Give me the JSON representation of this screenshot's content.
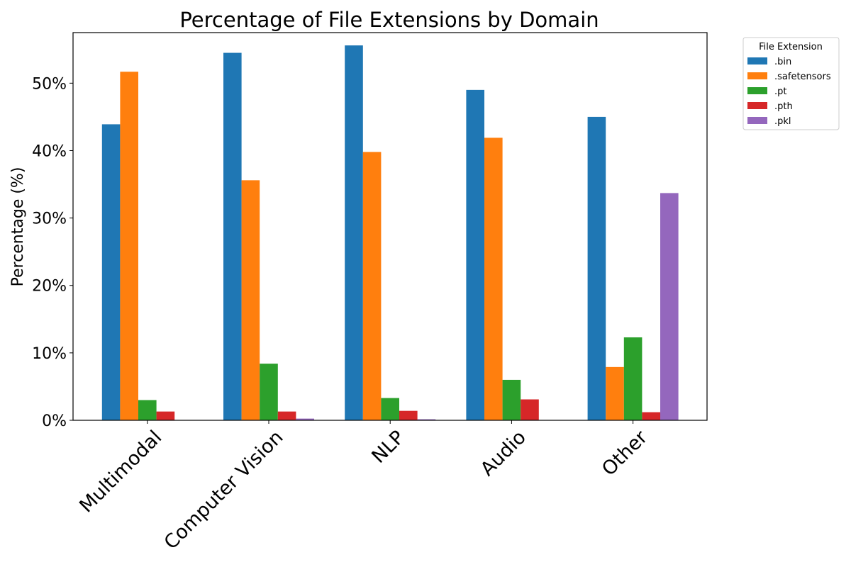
{
  "chart_data": {
    "type": "bar",
    "title": "Percentage of File Extensions by Domain",
    "xlabel": "",
    "ylabel": "Percentage (%)",
    "categories": [
      "Multimodal",
      "Computer Vision",
      "NLP",
      "Audio",
      "Other"
    ],
    "ylim": [
      0,
      57.5
    ],
    "yticks": [
      0,
      10,
      20,
      30,
      40,
      50
    ],
    "ytick_labels": [
      "0%",
      "10%",
      "20%",
      "30%",
      "40%",
      "50%"
    ],
    "grid": false,
    "legend": {
      "title": "File Extension",
      "placement": "outside-top-right"
    },
    "series": [
      {
        "name": ".bin",
        "color": "#1f77b4",
        "values": [
          43.9,
          54.5,
          55.6,
          49.0,
          45.0
        ]
      },
      {
        "name": ".safetensors",
        "color": "#ff7f0e",
        "values": [
          51.7,
          35.6,
          39.8,
          41.9,
          7.9
        ]
      },
      {
        "name": ".pt",
        "color": "#2ca02c",
        "values": [
          3.0,
          8.4,
          3.3,
          6.0,
          12.3
        ]
      },
      {
        "name": ".pth",
        "color": "#d62728",
        "values": [
          1.3,
          1.3,
          1.4,
          3.1,
          1.2
        ]
      },
      {
        "name": ".pkl",
        "color": "#9467bd",
        "values": [
          0.0,
          0.25,
          0.15,
          0.0,
          33.7
        ]
      }
    ]
  }
}
